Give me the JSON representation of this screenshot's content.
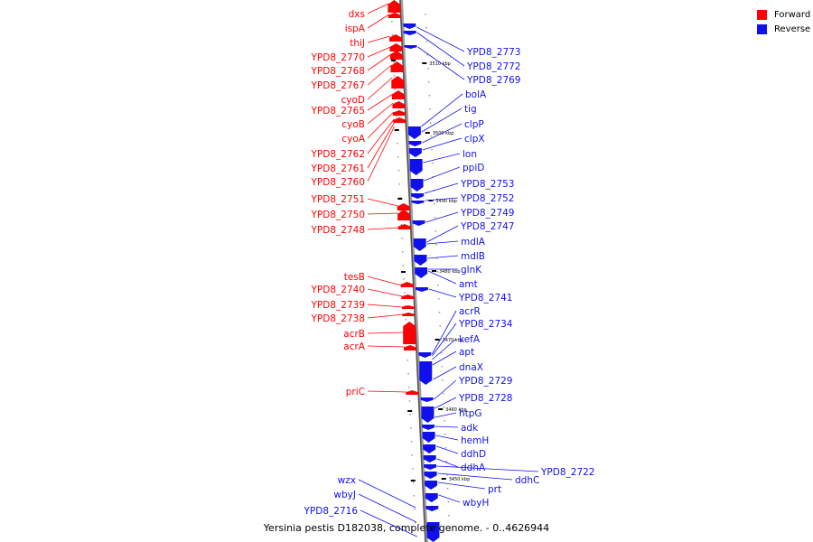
{
  "legend": {
    "forward_label": "Forward",
    "reverse_label": "Reverse",
    "forward_color": "#ff0000",
    "reverse_color": "#1010ee"
  },
  "caption": "Yersinia pestis D182038, complete genome. - 0..4626944",
  "scale_labels": [
    "3510 kbp",
    "3500 kbp",
    "3490 kbp",
    "3480 kbp",
    "3470 kbp",
    "3460 kbp",
    "3450 kbp"
  ],
  "forward_genes": [
    "dxs",
    "ispA",
    "thiJ",
    "YPD8_2770",
    "YPD8_2768",
    "YPD8_2767",
    "cyoD",
    "YPD8_2765",
    "cyoB",
    "cyoA",
    "YPD8_2762",
    "YPD8_2761",
    "YPD8_2760",
    "YPD8_2751",
    "YPD8_2750",
    "YPD8_2748",
    "tesB",
    "YPD8_2740",
    "YPD8_2739",
    "YPD8_2738",
    "acrB",
    "acrA",
    "priC"
  ],
  "reverse_genes": [
    "YPD8_2773",
    "YPD8_2772",
    "YPD8_2769",
    "bolA",
    "tig",
    "clpP",
    "clpX",
    "lon",
    "ppiD",
    "YPD8_2753",
    "YPD8_2752",
    "YPD8_2749",
    "YPD8_2747",
    "mdlA",
    "mdlB",
    "glnK",
    "amt",
    "YPD8_2741",
    "acrR",
    "YPD8_2734",
    "kefA",
    "apt",
    "dnaX",
    "YPD8_2729",
    "YPD8_2728",
    "htpG",
    "adk",
    "hemH",
    "ddhD",
    "ddhA",
    "YPD8_2722",
    "ddhC",
    "prt",
    "wbyH",
    "wzx",
    "wbyJ",
    "YPD8_2716"
  ]
}
